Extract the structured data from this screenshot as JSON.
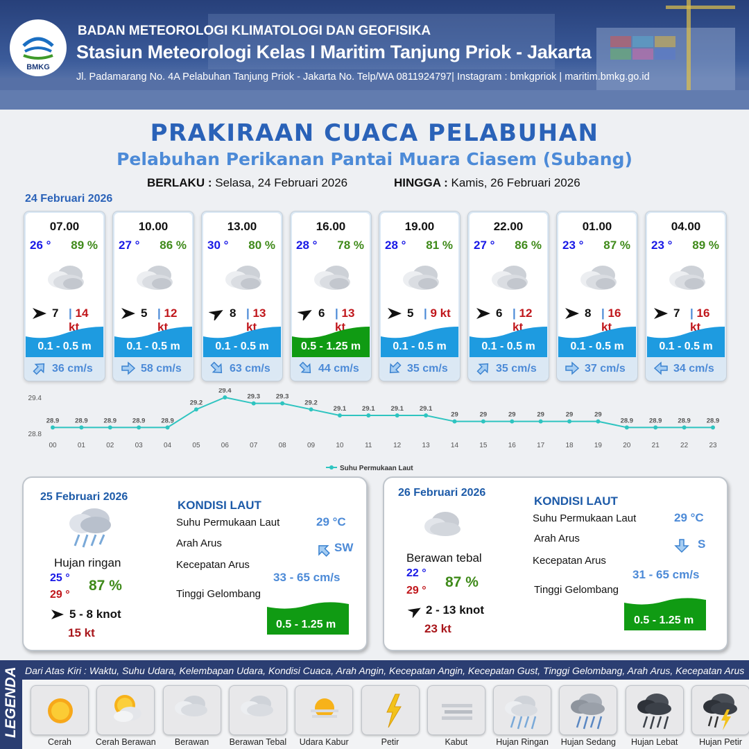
{
  "header": {
    "org": "BADAN METEOROLOGI KLIMATOLOGI DAN GEOFISIKA",
    "station": "Stasiun Meteorologi Kelas I Maritim Tanjung Priok - Jakarta",
    "address": "Jl. Padamarang No. 4A Pelabuhan Tanjung Priok - Jakarta No. Telp/WA 0811924797| Instagram : bmkgpriok | maritim.bmkg.go.id",
    "logo_text": "BMKG"
  },
  "title": "PRAKIRAAN CUACA PELABUHAN",
  "subtitle": "Pelabuhan Perikanan Pantai Muara Ciasem (Subang)",
  "validity": {
    "from_label": "BERLAKU :",
    "from_value": "Selasa, 24 Februari 2026",
    "to_label": "HINGGA :",
    "to_value": "Kamis, 26 Februari 2026"
  },
  "day1_date": "24 Februari 2026",
  "cards": [
    {
      "time": "07.00",
      "temp": "26 °",
      "hum": "89 %",
      "wind": "7",
      "gust": "14 kt",
      "wave": "0.1 - 0.5 m",
      "current": "36 cm/s",
      "wind_dir": "E",
      "cur_dir": "NE",
      "wave_level": "low",
      "weather_icon": "berawan-tebal-icon"
    },
    {
      "time": "10.00",
      "temp": "27 °",
      "hum": "86 %",
      "wind": "5",
      "gust": "12 kt",
      "wave": "0.1 - 0.5 m",
      "current": "58 cm/s",
      "wind_dir": "E",
      "cur_dir": "E",
      "wave_level": "low",
      "weather_icon": "berawan-tebal-icon"
    },
    {
      "time": "13.00",
      "temp": "30 °",
      "hum": "80 %",
      "wind": "8",
      "gust": "13 kt",
      "wave": "0.1 - 0.5 m",
      "current": "63 cm/s",
      "wind_dir": "NE",
      "cur_dir": "SE",
      "wave_level": "low",
      "weather_icon": "berawan-tebal-icon"
    },
    {
      "time": "16.00",
      "temp": "28 °",
      "hum": "78 %",
      "wind": "6",
      "gust": "13 kt",
      "wave": "0.5 - 1.25 m",
      "current": "44 cm/s",
      "wind_dir": "NE",
      "cur_dir": "SE",
      "wave_level": "moderate",
      "weather_icon": "berawan-tebal-icon"
    },
    {
      "time": "19.00",
      "temp": "28 °",
      "hum": "81 %",
      "wind": "5",
      "gust": "9 kt",
      "wave": "0.1 - 0.5 m",
      "current": "35 cm/s",
      "wind_dir": "E",
      "cur_dir": "SW",
      "wave_level": "low",
      "weather_icon": "berawan-tebal-icon"
    },
    {
      "time": "22.00",
      "temp": "27 °",
      "hum": "86 %",
      "wind": "6",
      "gust": "12 kt",
      "wave": "0.1 - 0.5 m",
      "current": "35 cm/s",
      "wind_dir": "E",
      "cur_dir": "NE",
      "wave_level": "low",
      "weather_icon": "berawan-tebal-icon"
    },
    {
      "time": "01.00",
      "temp": "23 °",
      "hum": "87 %",
      "wind": "8",
      "gust": "16 kt",
      "wave": "0.1 - 0.5 m",
      "current": "37 cm/s",
      "wind_dir": "E",
      "cur_dir": "E",
      "wave_level": "low",
      "weather_icon": "berawan-tebal-icon"
    },
    {
      "time": "04.00",
      "temp": "23 °",
      "hum": "89 %",
      "wind": "7",
      "gust": "16 kt",
      "wave": "0.1 - 0.5 m",
      "current": "34 cm/s",
      "wind_dir": "E",
      "cur_dir": "W",
      "wave_level": "low",
      "weather_icon": "berawan-tebal-icon"
    }
  ],
  "chart_data": {
    "type": "line",
    "categories": [
      "00",
      "01",
      "02",
      "03",
      "04",
      "05",
      "06",
      "07",
      "08",
      "09",
      "10",
      "11",
      "12",
      "13",
      "14",
      "15",
      "16",
      "17",
      "18",
      "19",
      "20",
      "21",
      "22",
      "23"
    ],
    "series": [
      {
        "name": "Suhu Permukaan Laut",
        "values": [
          28.9,
          28.9,
          28.9,
          28.9,
          28.9,
          29.2,
          29.4,
          29.3,
          29.3,
          29.2,
          29.1,
          29.1,
          29.1,
          29.1,
          29.0,
          29.0,
          29.0,
          29.0,
          29.0,
          29.0,
          28.9,
          28.9,
          28.9,
          28.9
        ]
      }
    ],
    "y_ticks": [
      "29.4",
      "28.8"
    ],
    "ylim": [
      28.8,
      29.4
    ],
    "legend": "bottom-center",
    "color": "#2ec4c0"
  },
  "day2": {
    "date": "25 Februari 2026",
    "condition": "Hujan ringan",
    "condition_icon": "hujan-ringan-icon",
    "tmin": "25 °",
    "tmax": "29 °",
    "hum": "87 %",
    "wind": "5  - 8 knot",
    "gust": "15 kt",
    "wind_dir": "E",
    "kondisi": "KONDISI LAUT",
    "sst_label": "Suhu Permukaan Laut",
    "sst": "29 °C",
    "cur_dir_label": "Arah Arus",
    "cur_dir": "SW",
    "cur_speed_label": "Kecepatan Arus",
    "cur_speed": "33  - 65 cm/s",
    "wave_label": "Tinggi Gelombang",
    "wave": "0.5 - 1.25 m"
  },
  "day3": {
    "date": "26 Februari 2026",
    "condition": "Berawan tebal",
    "condition_icon": "berawan-tebal-icon",
    "tmin": "22 °",
    "tmax": "29 °",
    "hum": "87 %",
    "wind": "2  - 13 knot",
    "gust": "23 kt",
    "wind_dir": "NE",
    "kondisi": "KONDISI LAUT",
    "sst_label": "Suhu Permukaan Laut",
    "sst": "29 °C",
    "cur_dir_label": "Arah Arus",
    "cur_dir": "S",
    "cur_speed_label": "Kecepatan Arus",
    "cur_speed": "31  - 65 cm/s",
    "wave_label": "Tinggi Gelombang",
    "wave": "0.5 - 1.25 m"
  },
  "legend": {
    "title": "LEGENDA",
    "description": "Dari Atas Kiri : Waktu, Suhu Udara, Kelembapan Udara, Kondisi Cuaca, Arah Angin, Kecepatan Angin, Kecepatan Gust, Tinggi Gelombang, Arah Arus, Kecepatan Arus",
    "items": [
      {
        "label": "Cerah",
        "icon": "cerah-icon"
      },
      {
        "label": "Cerah Berawan",
        "icon": "cerah-berawan-icon"
      },
      {
        "label": "Berawan",
        "icon": "berawan-icon"
      },
      {
        "label": "Berawan Tebal",
        "icon": "berawan-tebal-icon"
      },
      {
        "label": "Udara Kabur",
        "icon": "udara-kabur-icon"
      },
      {
        "label": "Petir",
        "icon": "petir-icon"
      },
      {
        "label": "Kabut",
        "icon": "kabut-icon"
      },
      {
        "label": "Hujan Ringan",
        "icon": "hujan-ringan-icon"
      },
      {
        "label": "Hujan Sedang",
        "icon": "hujan-sedang-icon"
      },
      {
        "label": "Hujan Lebat",
        "icon": "hujan-lebat-icon"
      },
      {
        "label": "Hujan Petir",
        "icon": "hujan-petir-icon"
      }
    ]
  },
  "colors": {
    "title": "#2a62b8",
    "subtitle": "#4c8ad7",
    "temp": "#1818e6",
    "humidity": "#3f8a1a",
    "gust": "#c0161b",
    "wave_low": "#1e9be0",
    "wave_moderate": "#109b13",
    "current": "#4c8ad7",
    "header_bg": "#27407a"
  }
}
